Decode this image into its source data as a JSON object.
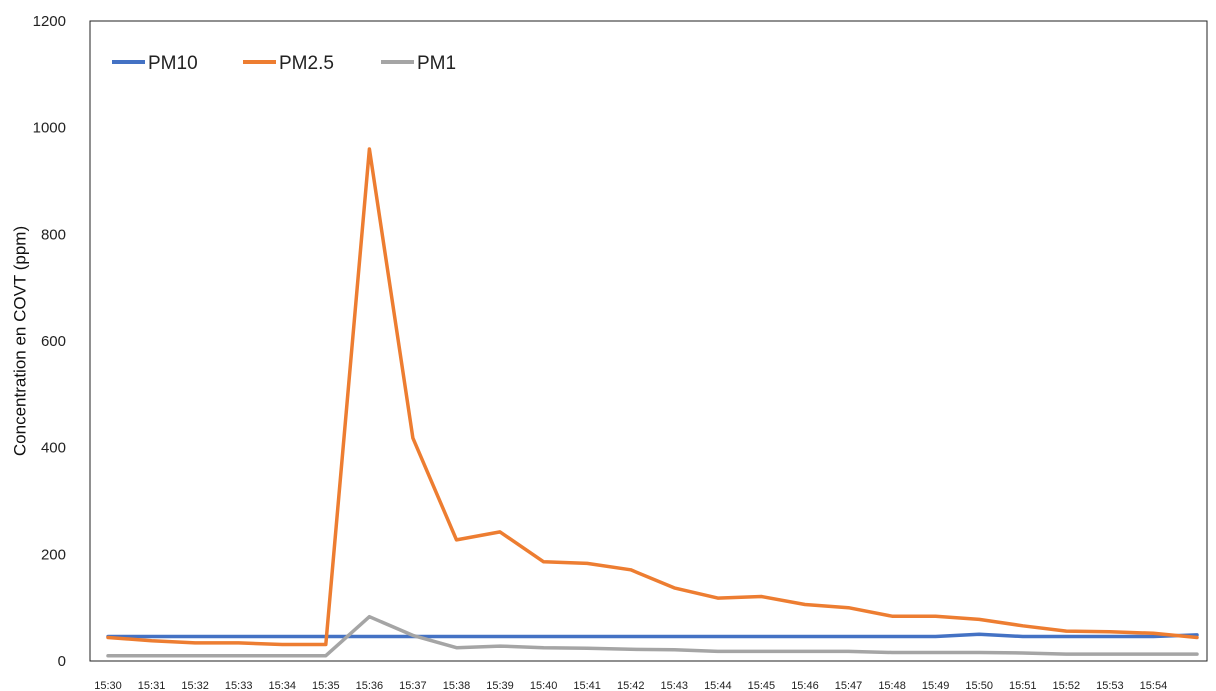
{
  "chart_data": {
    "type": "line",
    "title": "",
    "xlabel": "",
    "ylabel": "Concentration en COVT (ppm)",
    "ylim": [
      0,
      1200
    ],
    "yticks": [
      0,
      200,
      400,
      600,
      800,
      1000,
      1200
    ],
    "grid": false,
    "legend_position": "top-left",
    "x": [
      "15:30",
      "15:31",
      "15:32",
      "15:33",
      "15:34",
      "15:35",
      "15:36",
      "15:37",
      "15:38",
      "15:39",
      "15:40",
      "15:41",
      "15:42",
      "15:43",
      "15:44",
      "15:45",
      "15:46",
      "15:47",
      "15:48",
      "15:49",
      "15:50",
      "15:51",
      "15:52",
      "15:53",
      "15:54",
      ""
    ],
    "series": [
      {
        "name": "PM10",
        "color": "#4472C4",
        "values": [
          46,
          46,
          46,
          46,
          46,
          46,
          46,
          46,
          46,
          46,
          46,
          46,
          46,
          46,
          46,
          46,
          46,
          46,
          46,
          46,
          50,
          46,
          46,
          46,
          46,
          49
        ]
      },
      {
        "name": "PM2.5",
        "color": "#ED7D31",
        "values": [
          44,
          38,
          34,
          34,
          31,
          31,
          960,
          418,
          227,
          242,
          186,
          183,
          171,
          137,
          118,
          121,
          106,
          100,
          84,
          84,
          78,
          66,
          56,
          55,
          52,
          44
        ]
      },
      {
        "name": "PM1",
        "color": "#A5A5A5",
        "values": [
          10,
          10,
          10,
          10,
          10,
          10,
          83,
          48,
          25,
          28,
          25,
          24,
          22,
          21,
          18,
          18,
          18,
          18,
          16,
          16,
          16,
          15,
          13,
          13,
          13,
          13
        ]
      }
    ]
  }
}
